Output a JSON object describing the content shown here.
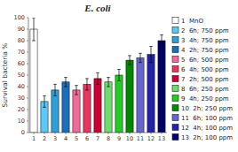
{
  "chart_data": {
    "type": "bar",
    "title": "E. coli",
    "ylabel": "Survival bacteria %",
    "categories": [
      "1",
      "2",
      "3",
      "4",
      "5",
      "6",
      "7",
      "8",
      "9",
      "10",
      "11",
      "12",
      "13"
    ],
    "values": [
      90,
      27,
      37,
      44,
      37,
      42,
      47,
      44,
      50,
      63,
      65,
      68,
      80
    ],
    "errors": [
      10,
      5,
      5,
      4,
      4,
      5,
      5,
      4,
      5,
      4,
      4,
      7,
      5
    ],
    "colors": [
      "#ffffff",
      "#5bc8f5",
      "#2e9fd8",
      "#1a6fbb",
      "#f06b9a",
      "#e8365d",
      "#cc0033",
      "#6fdc6f",
      "#22cc22",
      "#008800",
      "#6666cc",
      "#2222aa",
      "#000066"
    ],
    "legend_labels": [
      "1  MnO",
      "2  6h; 750 ppm",
      "3  4h; 750 ppm",
      "4  2h; 750 ppm",
      "5  6h; 500 ppm",
      "6  4h; 500 ppm",
      "7  2h; 500 ppm",
      "8  6h; 250 ppm",
      "9  4h; 250 ppm",
      "10  2h; 250 ppm",
      "11  6h; 100 ppm",
      "12  4h; 100 ppm",
      "13  2h; 100 ppm"
    ],
    "legend": "right",
    "ylim": [
      0,
      100
    ],
    "yticks": [
      0,
      10,
      20,
      30,
      40,
      50,
      60,
      70,
      80,
      90,
      100
    ]
  }
}
